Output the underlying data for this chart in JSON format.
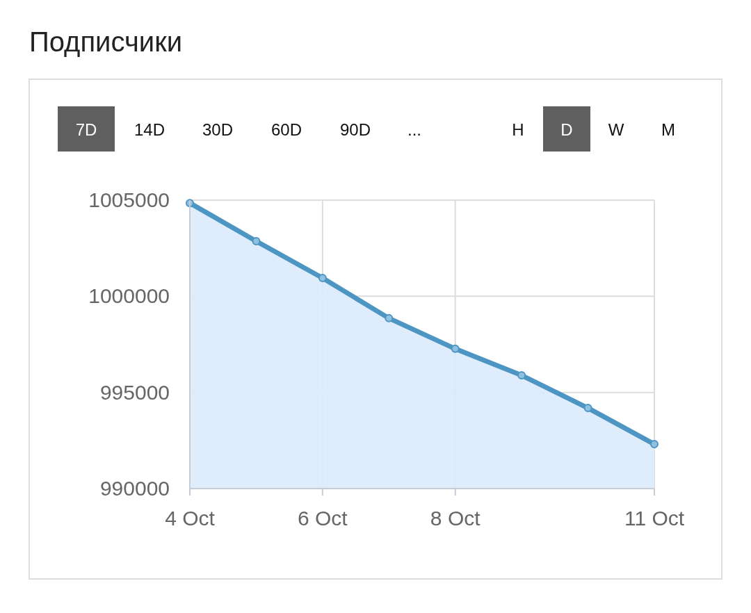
{
  "chart_data": {
    "type": "area",
    "title": "Подписчики",
    "annotations": [
      "7D",
      "14D",
      "30D",
      "60D",
      "90D",
      "...",
      "H",
      "D",
      "W",
      "M"
    ],
    "x": [
      "--10-04",
      "--10-05",
      "--10-06",
      "--10-07",
      "--10-08",
      "--10-09",
      "--10-10",
      "--10-11"
    ],
    "series": [
      {
        "color": "#4d96c3",
        "values": [
          1004850,
          1002870,
          1000950,
          998860,
          997270,
          995890,
          994190,
          992310
        ]
      }
    ],
    "xlim": [
      "--10-04",
      "--10-11"
    ],
    "xticks": [
      {
        "value": "--10-04",
        "label": "4 Oct"
      },
      {
        "value": "--10-06",
        "label": "6 Oct"
      },
      {
        "value": "--10-08",
        "label": "8 Oct"
      },
      {
        "value": "--10-11",
        "label": "11 Oct"
      }
    ],
    "ylim": [
      990000,
      1005000
    ],
    "yticks": [
      990000,
      995000,
      1000000,
      1005000
    ],
    "grid": true,
    "marker": "circle"
  }
}
